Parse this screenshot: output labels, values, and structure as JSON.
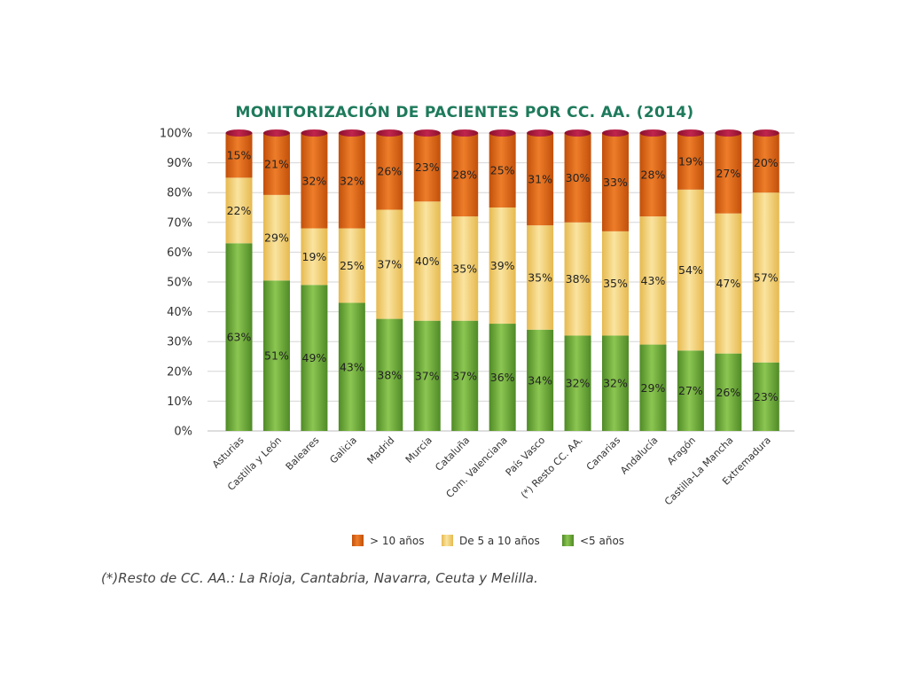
{
  "chart_data": {
    "type": "bar",
    "stacked": true,
    "title": "MONITORIZACIÓN DE PACIENTES POR CC. AA. (2014)",
    "categories": [
      "Asturias",
      "Castilla y León",
      "Baleares",
      "Galicia",
      "Madrid",
      "Murcia",
      "Cataluña",
      "Com. Valenciana",
      "País Vasco",
      "(*) Resto CC. AA.",
      "Canarias",
      "Andalucía",
      "Aragón",
      "Castilla-La Mancha",
      "Extremadura"
    ],
    "series": [
      {
        "name": "<5 años",
        "color": "#6aa338",
        "values": [
          63,
          51,
          49,
          43,
          38,
          37,
          37,
          36,
          34,
          32,
          32,
          29,
          27,
          26,
          23
        ]
      },
      {
        "name": "De 5 a 10 años",
        "color": "#f2cf6e",
        "values": [
          22,
          29,
          19,
          25,
          37,
          40,
          35,
          39,
          35,
          38,
          35,
          43,
          54,
          47,
          57
        ]
      },
      {
        "name": "> 10 años",
        "color": "#d9640f",
        "values": [
          15,
          21,
          32,
          32,
          26,
          23,
          28,
          25,
          31,
          30,
          33,
          28,
          19,
          27,
          20
        ]
      }
    ],
    "legend_order": [
      "> 10 años",
      "De 5 a 10 años",
      "<5 años"
    ],
    "yticks": [
      "0%",
      "10%",
      "20%",
      "30%",
      "40%",
      "50%",
      "60%",
      "70%",
      "80%",
      "90%",
      "100%"
    ],
    "ylim": [
      0,
      100
    ],
    "grid": true,
    "legend_position": "bottom"
  },
  "footnote": "(*)Resto de CC. AA.: La Rioja, Cantabria, Navarra, Ceuta y Melilla."
}
